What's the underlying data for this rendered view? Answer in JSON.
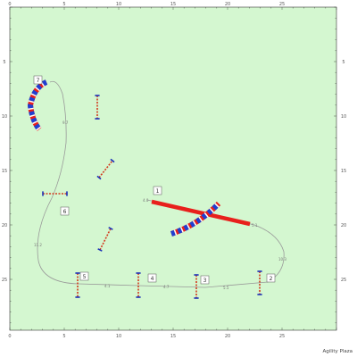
{
  "diagram": {
    "type": "agility-course-map",
    "field_color": "#d4f7d0",
    "x_ticks": [
      "0",
      "5",
      "10",
      "15",
      "20",
      "25"
    ],
    "y_ticks": [
      "5",
      "10",
      "15",
      "20",
      "25"
    ],
    "obstacle_numbers": [
      "1",
      "2",
      "3",
      "4",
      "5",
      "6",
      "7"
    ],
    "distances": [
      "9.7",
      "11.2",
      "10.3",
      "5.1",
      "5.5",
      "4.7",
      "4.1",
      "4.0"
    ],
    "credit": "Agility Plaza",
    "colors": {
      "path": "#999999",
      "tunnel_red": "#e8201c",
      "tunnel_blue": "#1f3fd1",
      "jump_bar": "#d23a1f",
      "jump_stand": "#1a2fb8",
      "axis": "#222222"
    }
  }
}
